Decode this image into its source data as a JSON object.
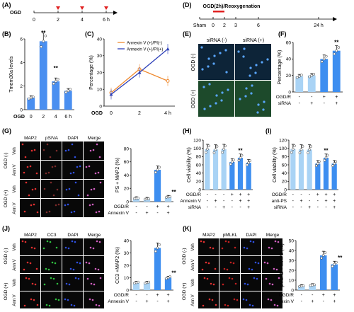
{
  "panels": {
    "A": {
      "label": "(A)",
      "start": "OGD",
      "ticks": [
        "0",
        "2",
        "4",
        "6 h"
      ]
    },
    "B": {
      "label": "(B)",
      "ylabel": "Tmem30a levels",
      "xhead": "OGD",
      "sig": [
        "**",
        "**"
      ]
    },
    "C": {
      "label": "(C)",
      "ylabel": "Percentage (%)",
      "xhead": "OGD",
      "legend": [
        "Annexin V (+)/PI(-)",
        "Annexin V (+)/PI(+)"
      ]
    },
    "D": {
      "label": "(D)",
      "title": "OGD(2h)/Reoxygenation",
      "ticks": [
        "Sham",
        "0",
        "2",
        "3",
        "6",
        "24 h"
      ]
    },
    "E": {
      "label": "(E)",
      "col_heads": [
        "siRNA (-)",
        "siRNA (+)"
      ],
      "row_heads": [
        "OGD (-)",
        "OGD (+)"
      ]
    },
    "F": {
      "label": "(F)",
      "ylabel": "Percentage (%)",
      "rows": [
        "OGD/R",
        "siRNA"
      ],
      "signs": [
        [
          "-",
          "-",
          "+",
          "+"
        ],
        [
          "-",
          "+",
          "-",
          "+"
        ]
      ],
      "sig": "**"
    },
    "G": {
      "label": "(G)",
      "col_heads": [
        "MAP2",
        "pSIVA",
        "DAPI",
        "Merge"
      ],
      "row_groups": [
        "OGD (-)",
        "OGD (+)"
      ],
      "row_heads": [
        "Veh",
        "Ann V",
        "Veh",
        "Ann V"
      ],
      "ylabel": "PS + MAP2 (%)",
      "rows": [
        "OGD/R",
        "Annexin V"
      ],
      "signs": [
        [
          "-",
          "-",
          "+",
          "+"
        ],
        [
          "-",
          "+",
          "-",
          "+"
        ]
      ],
      "sig": "**"
    },
    "H": {
      "label": "(H)",
      "ylabel": "Cell viability (%)",
      "rows": [
        "OGD/R",
        "Annexin V",
        "siRNA"
      ],
      "signs": [
        [
          "-",
          "-",
          "-",
          "+",
          "+",
          "+"
        ],
        [
          "-",
          "+",
          "-",
          "-",
          "+",
          "+"
        ],
        [
          "-",
          "-",
          "+",
          "-",
          "-",
          "+"
        ]
      ],
      "sig": "**"
    },
    "I": {
      "label": "(I)",
      "ylabel": "Cell viability (%)",
      "rows": [
        "OGD/R",
        "anti-PS",
        "siRNA"
      ],
      "signs": [
        [
          "-",
          "-",
          "-",
          "+",
          "+",
          "+"
        ],
        [
          "-",
          "+",
          "-",
          "-",
          "+",
          "+"
        ],
        [
          "-",
          "-",
          "+",
          "-",
          "-",
          "+"
        ]
      ],
      "sig": "**"
    },
    "J": {
      "label": "(J)",
      "col_heads": [
        "MAP2",
        "CC3",
        "DAPI",
        "Merge"
      ],
      "row_groups": [
        "OGD (-)",
        "OGD (+)"
      ],
      "row_heads": [
        "Veh",
        "Ann V",
        "Veh",
        "Ann V"
      ],
      "ylabel": "CC3 +MAP2 (%)",
      "rows": [
        "OGD/R",
        "Annexin V"
      ],
      "signs": [
        [
          "-",
          "-",
          "+",
          "+"
        ],
        [
          "-",
          "+",
          "-",
          "+"
        ]
      ],
      "sig": "**"
    },
    "K": {
      "label": "(K)",
      "col_heads": [
        "MAP2",
        "pMLKL",
        "DAPI",
        "Merge"
      ],
      "row_groups": [
        "OGD (-)",
        "OGD (+)"
      ],
      "row_heads": [
        "Veh",
        "Ann V",
        "Veh",
        "Ann V"
      ],
      "ylabel": "pMLKL + MAP2 (%)",
      "rows": [
        "OGD/R",
        "Annexin V"
      ],
      "signs": [
        [
          "-",
          "-",
          "+",
          "+"
        ],
        [
          "-",
          "+",
          "-",
          "+"
        ]
      ],
      "sig": "**"
    }
  },
  "chart_data": [
    {
      "panel": "B",
      "type": "bar",
      "categories": [
        "0",
        "2",
        "4",
        "6 h"
      ],
      "values": [
        1.0,
        5.8,
        2.4,
        1.6
      ],
      "ylim": [
        0,
        6
      ],
      "yticks": [
        0,
        2,
        4,
        6
      ],
      "color": "#4a8ff0"
    },
    {
      "panel": "C",
      "type": "line",
      "x": [
        0,
        2,
        4
      ],
      "xticks": [
        "0",
        "2",
        "4 h"
      ],
      "ylim": [
        0,
        40
      ],
      "yticks": [
        0,
        10,
        20,
        30,
        40
      ],
      "series": [
        {
          "name": "Annexin V (+)/PI(-)",
          "values": [
            8,
            22,
            15
          ],
          "color": "#ef8a2f"
        },
        {
          "name": "Annexin V (+)/PI(+)",
          "values": [
            7,
            20,
            34
          ],
          "color": "#2c3fb8"
        }
      ]
    },
    {
      "panel": "F",
      "type": "bar",
      "values": [
        19,
        20,
        40,
        50
      ],
      "ylim": [
        0,
        60
      ],
      "yticks": [
        0,
        20,
        40,
        60
      ],
      "colors": [
        "#a9d3f5",
        "#a9d3f5",
        "#3d8ef0",
        "#3d8ef0"
      ]
    },
    {
      "panel": "G",
      "type": "bar",
      "values": [
        5,
        4,
        48,
        7
      ],
      "ylim": [
        0,
        80
      ],
      "yticks": [
        0,
        20,
        40,
        60,
        80
      ],
      "colors": [
        "#a9d3f5",
        "#a9d3f5",
        "#3d8ef0",
        "#a9d3f5"
      ]
    },
    {
      "panel": "H",
      "type": "bar",
      "values": [
        98,
        97,
        98,
        67,
        77,
        65
      ],
      "ylim": [
        0,
        120
      ],
      "yticks": [
        0,
        20,
        40,
        60,
        80,
        100,
        120
      ],
      "colors": [
        "#a9d3f5",
        "#a9d3f5",
        "#a9d3f5",
        "#3d8ef0",
        "#3d8ef0",
        "#3d8ef0"
      ]
    },
    {
      "panel": "I",
      "type": "bar",
      "values": [
        98,
        97,
        97,
        63,
        77,
        63
      ],
      "ylim": [
        0,
        120
      ],
      "yticks": [
        0,
        20,
        40,
        60,
        80,
        100,
        120
      ],
      "colors": [
        "#a9d3f5",
        "#a9d3f5",
        "#a9d3f5",
        "#3d8ef0",
        "#3d8ef0",
        "#3d8ef0"
      ]
    },
    {
      "panel": "J",
      "type": "bar",
      "values": [
        6,
        6,
        34,
        10
      ],
      "ylim": [
        0,
        40
      ],
      "yticks": [
        0,
        10,
        20,
        30,
        40
      ],
      "colors": [
        "#a9d3f5",
        "#a9d3f5",
        "#3d8ef0",
        "#3d8ef0"
      ]
    },
    {
      "panel": "K",
      "type": "bar",
      "values": [
        4,
        5,
        35,
        26
      ],
      "ylim": [
        0,
        50
      ],
      "yticks": [
        0,
        10,
        20,
        30,
        40,
        50
      ],
      "colors": [
        "#a9d3f5",
        "#a9d3f5",
        "#3d8ef0",
        "#3d8ef0"
      ]
    }
  ]
}
